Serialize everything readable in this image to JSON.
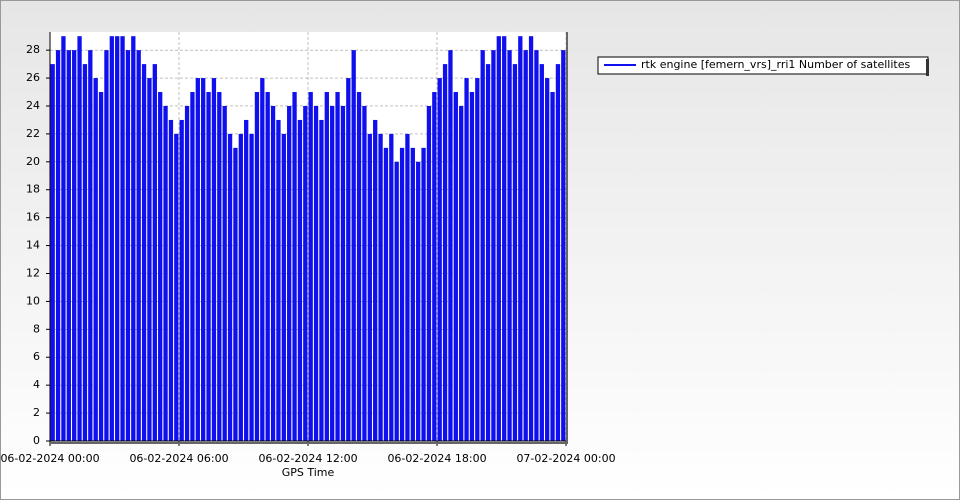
{
  "chart_data": {
    "type": "bar",
    "x_label": "GPS Time",
    "x": [
      "06-02-2024 00:00",
      "06-02-2024 00:15",
      "06-02-2024 00:30",
      "06-02-2024 00:45",
      "06-02-2024 01:00",
      "06-02-2024 01:15",
      "06-02-2024 01:30",
      "06-02-2024 01:45",
      "06-02-2024 02:00",
      "06-02-2024 02:15",
      "06-02-2024 02:30",
      "06-02-2024 02:45",
      "06-02-2024 03:00",
      "06-02-2024 03:15",
      "06-02-2024 03:30",
      "06-02-2024 03:45",
      "06-02-2024 04:00",
      "06-02-2024 04:15",
      "06-02-2024 04:30",
      "06-02-2024 04:45",
      "06-02-2024 05:00",
      "06-02-2024 05:15",
      "06-02-2024 05:30",
      "06-02-2024 05:45",
      "06-02-2024 06:00",
      "06-02-2024 06:15",
      "06-02-2024 06:30",
      "06-02-2024 06:45",
      "06-02-2024 07:00",
      "06-02-2024 07:15",
      "06-02-2024 07:30",
      "06-02-2024 07:45",
      "06-02-2024 08:00",
      "06-02-2024 08:15",
      "06-02-2024 08:30",
      "06-02-2024 08:45",
      "06-02-2024 09:00",
      "06-02-2024 09:15",
      "06-02-2024 09:30",
      "06-02-2024 09:45",
      "06-02-2024 10:00",
      "06-02-2024 10:15",
      "06-02-2024 10:30",
      "06-02-2024 10:45",
      "06-02-2024 11:00",
      "06-02-2024 11:15",
      "06-02-2024 11:30",
      "06-02-2024 11:45",
      "06-02-2024 12:00",
      "06-02-2024 12:15",
      "06-02-2024 12:30",
      "06-02-2024 12:45",
      "06-02-2024 13:00",
      "06-02-2024 13:15",
      "06-02-2024 13:30",
      "06-02-2024 13:45",
      "06-02-2024 14:00",
      "06-02-2024 14:15",
      "06-02-2024 14:30",
      "06-02-2024 14:45",
      "06-02-2024 15:00",
      "06-02-2024 15:15",
      "06-02-2024 15:30",
      "06-02-2024 15:45",
      "06-02-2024 16:00",
      "06-02-2024 16:15",
      "06-02-2024 16:30",
      "06-02-2024 16:45",
      "06-02-2024 17:00",
      "06-02-2024 17:15",
      "06-02-2024 17:30",
      "06-02-2024 17:45",
      "06-02-2024 18:00",
      "06-02-2024 18:15",
      "06-02-2024 18:30",
      "06-02-2024 18:45",
      "06-02-2024 19:00",
      "06-02-2024 19:15",
      "06-02-2024 19:30",
      "06-02-2024 19:45",
      "06-02-2024 20:00",
      "06-02-2024 20:15",
      "06-02-2024 20:30",
      "06-02-2024 20:45",
      "06-02-2024 21:00",
      "06-02-2024 21:15",
      "06-02-2024 21:30",
      "06-02-2024 21:45",
      "06-02-2024 22:00",
      "06-02-2024 22:15",
      "06-02-2024 22:30",
      "06-02-2024 22:45",
      "06-02-2024 23:00",
      "06-02-2024 23:15",
      "06-02-2024 23:30",
      "06-02-2024 23:45"
    ],
    "series": [
      {
        "name": "rtk engine [femern_vrs]_rri1 Number of satellites",
        "color": "#1010ee",
        "values": [
          27,
          28,
          29,
          28,
          28,
          29,
          27,
          28,
          26,
          25,
          28,
          29,
          29,
          29,
          28,
          29,
          28,
          27,
          26,
          27,
          25,
          24,
          23,
          22,
          23,
          24,
          25,
          26,
          26,
          25,
          26,
          25,
          24,
          22,
          21,
          22,
          23,
          22,
          25,
          26,
          25,
          24,
          23,
          22,
          24,
          25,
          23,
          24,
          25,
          24,
          23,
          25,
          24,
          25,
          24,
          26,
          28,
          25,
          24,
          22,
          23,
          22,
          21,
          22,
          20,
          21,
          22,
          21,
          20,
          21,
          24,
          25,
          26,
          27,
          28,
          25,
          24,
          26,
          25,
          26,
          28,
          27,
          28,
          29,
          29,
          28,
          27,
          29,
          28,
          29,
          28,
          27,
          26,
          25,
          27,
          28
        ]
      }
    ],
    "xlim": [
      "06-02-2024 00:00",
      "07-02-2024 00:00"
    ],
    "xticks": [
      "06-02-2024 00:00",
      "06-02-2024 06:00",
      "06-02-2024 12:00",
      "06-02-2024 18:00",
      "07-02-2024 00:00"
    ],
    "ylim": [
      0,
      29.3
    ],
    "yticks": [
      0,
      2,
      4,
      6,
      8,
      10,
      12,
      14,
      16,
      18,
      20,
      22,
      24,
      26,
      28
    ],
    "grid": true
  }
}
